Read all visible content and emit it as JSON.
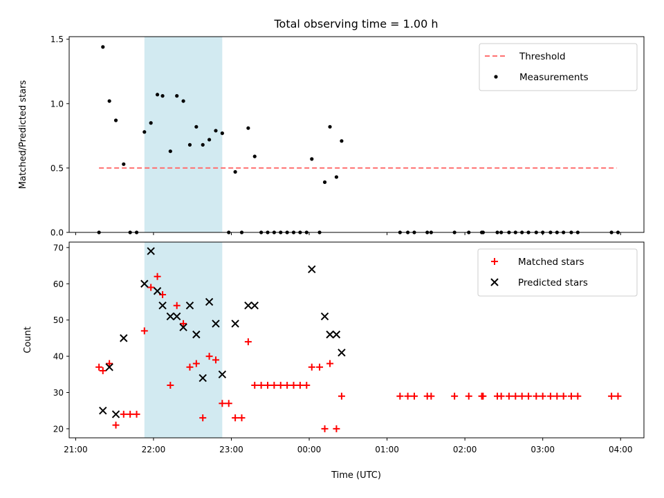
{
  "chart_data": {
    "title": "Total observing time = 1.00 h",
    "shared_xlabel": "Time (UTC)",
    "x_unit": "minutes after 21:00 UTC (second axis spans next day)",
    "xlim": [
      -5,
      438
    ],
    "x_ticks": [
      {
        "v": 0,
        "label": "21:00"
      },
      {
        "v": 60,
        "label": "22:00"
      },
      {
        "v": 120,
        "label": "23:00"
      },
      {
        "v": 180,
        "label": "00:00"
      },
      {
        "v": 240,
        "label": "01:00"
      },
      {
        "v": 300,
        "label": "02:00"
      },
      {
        "v": 360,
        "label": "03:00"
      },
      {
        "v": 420,
        "label": "04:00"
      }
    ],
    "highlight_span": {
      "from": 53,
      "to": 113,
      "color": "#add8e6"
    },
    "panels": [
      {
        "type": "scatter",
        "ylabel": "Matched/Predicted stars",
        "ylim": [
          0,
          1.52
        ],
        "y_ticks": [
          {
            "v": 0,
            "label": "0.0"
          },
          {
            "v": 0.5,
            "label": "0.5"
          },
          {
            "v": 1.0,
            "label": "1.0"
          },
          {
            "v": 1.5,
            "label": "1.5"
          }
        ],
        "legend_position": "upper right",
        "threshold": {
          "name": "Threshold",
          "value": 0.5,
          "x_from": 18,
          "x_to": 417,
          "color": "#ff7070"
        },
        "series": [
          {
            "name": "Measurements",
            "color": "#000000",
            "points": [
              [
                18,
                0
              ],
              [
                21,
                1.44
              ],
              [
                26,
                1.02
              ],
              [
                31,
                0.87
              ],
              [
                37,
                0.53
              ],
              [
                42,
                0
              ],
              [
                47,
                0
              ],
              [
                53,
                0.78
              ],
              [
                58,
                0.85
              ],
              [
                63,
                1.07
              ],
              [
                67,
                1.06
              ],
              [
                73,
                0.63
              ],
              [
                78,
                1.06
              ],
              [
                83,
                1.02
              ],
              [
                88,
                0.68
              ],
              [
                93,
                0.82
              ],
              [
                98,
                0.68
              ],
              [
                103,
                0.72
              ],
              [
                108,
                0.79
              ],
              [
                113,
                0.77
              ],
              [
                118,
                0
              ],
              [
                123,
                0.47
              ],
              [
                128,
                0
              ],
              [
                133,
                0.81
              ],
              [
                138,
                0.59
              ],
              [
                143,
                0
              ],
              [
                148,
                0
              ],
              [
                153,
                0
              ],
              [
                158,
                0
              ],
              [
                163,
                0
              ],
              [
                168,
                0
              ],
              [
                173,
                0
              ],
              [
                178,
                0
              ],
              [
                182,
                0.57
              ],
              [
                188,
                0
              ],
              [
                192,
                0.39
              ],
              [
                196,
                0.82
              ],
              [
                201,
                0.43
              ],
              [
                205,
                0.71
              ],
              [
                250,
                0
              ],
              [
                256,
                0
              ],
              [
                261,
                0
              ],
              [
                271,
                0
              ],
              [
                274,
                0
              ],
              [
                292,
                0
              ],
              [
                303,
                0
              ],
              [
                313,
                0
              ],
              [
                314,
                0
              ],
              [
                325,
                0
              ],
              [
                328,
                0
              ],
              [
                334,
                0
              ],
              [
                339,
                0
              ],
              [
                344,
                0
              ],
              [
                349,
                0
              ],
              [
                355,
                0
              ],
              [
                360,
                0
              ],
              [
                366,
                0
              ],
              [
                371,
                0
              ],
              [
                376,
                0
              ],
              [
                382,
                0
              ],
              [
                387,
                0
              ],
              [
                413,
                0
              ],
              [
                418,
                0
              ]
            ]
          }
        ]
      },
      {
        "type": "scatter",
        "ylabel": "Count",
        "ylim": [
          17.5,
          71.5
        ],
        "y_ticks": [
          {
            "v": 20,
            "label": "20"
          },
          {
            "v": 30,
            "label": "30"
          },
          {
            "v": 40,
            "label": "40"
          },
          {
            "v": 50,
            "label": "50"
          },
          {
            "v": 60,
            "label": "60"
          },
          {
            "v": 70,
            "label": "70"
          }
        ],
        "legend_position": "upper right",
        "series": [
          {
            "name": "Matched stars",
            "marker": "plus",
            "color": "#ff0000",
            "points": [
              [
                18,
                37
              ],
              [
                21,
                36
              ],
              [
                26,
                38
              ],
              [
                31,
                21
              ],
              [
                37,
                24
              ],
              [
                42,
                24
              ],
              [
                47,
                24
              ],
              [
                53,
                47
              ],
              [
                58,
                59
              ],
              [
                63,
                62
              ],
              [
                67,
                57
              ],
              [
                73,
                32
              ],
              [
                78,
                54
              ],
              [
                83,
                49
              ],
              [
                88,
                37
              ],
              [
                93,
                38
              ],
              [
                98,
                23
              ],
              [
                103,
                40
              ],
              [
                108,
                39
              ],
              [
                113,
                27
              ],
              [
                118,
                27
              ],
              [
                123,
                23
              ],
              [
                128,
                23
              ],
              [
                133,
                44
              ],
              [
                138,
                32
              ],
              [
                143,
                32
              ],
              [
                148,
                32
              ],
              [
                153,
                32
              ],
              [
                158,
                32
              ],
              [
                163,
                32
              ],
              [
                168,
                32
              ],
              [
                173,
                32
              ],
              [
                178,
                32
              ],
              [
                182,
                37
              ],
              [
                188,
                37
              ],
              [
                192,
                20
              ],
              [
                196,
                38
              ],
              [
                201,
                20
              ],
              [
                205,
                29
              ],
              [
                250,
                29
              ],
              [
                256,
                29
              ],
              [
                261,
                29
              ],
              [
                271,
                29
              ],
              [
                274,
                29
              ],
              [
                292,
                29
              ],
              [
                303,
                29
              ],
              [
                313,
                29
              ],
              [
                314,
                29
              ],
              [
                325,
                29
              ],
              [
                328,
                29
              ],
              [
                334,
                29
              ],
              [
                339,
                29
              ],
              [
                344,
                29
              ],
              [
                349,
                29
              ],
              [
                355,
                29
              ],
              [
                360,
                29
              ],
              [
                366,
                29
              ],
              [
                371,
                29
              ],
              [
                376,
                29
              ],
              [
                382,
                29
              ],
              [
                387,
                29
              ],
              [
                413,
                29
              ],
              [
                418,
                29
              ]
            ]
          },
          {
            "name": "Predicted stars",
            "marker": "x",
            "color": "#000000",
            "points": [
              [
                21,
                25
              ],
              [
                26,
                37
              ],
              [
                31,
                24
              ],
              [
                37,
                45
              ],
              [
                53,
                60
              ],
              [
                58,
                69
              ],
              [
                63,
                58
              ],
              [
                67,
                54
              ],
              [
                73,
                51
              ],
              [
                78,
                51
              ],
              [
                83,
                48
              ],
              [
                88,
                54
              ],
              [
                93,
                46
              ],
              [
                98,
                34
              ],
              [
                103,
                55
              ],
              [
                108,
                49
              ],
              [
                113,
                35
              ],
              [
                123,
                49
              ],
              [
                133,
                54
              ],
              [
                138,
                54
              ],
              [
                182,
                64
              ],
              [
                192,
                51
              ],
              [
                196,
                46
              ],
              [
                201,
                46
              ],
              [
                205,
                41
              ]
            ]
          }
        ]
      }
    ]
  }
}
